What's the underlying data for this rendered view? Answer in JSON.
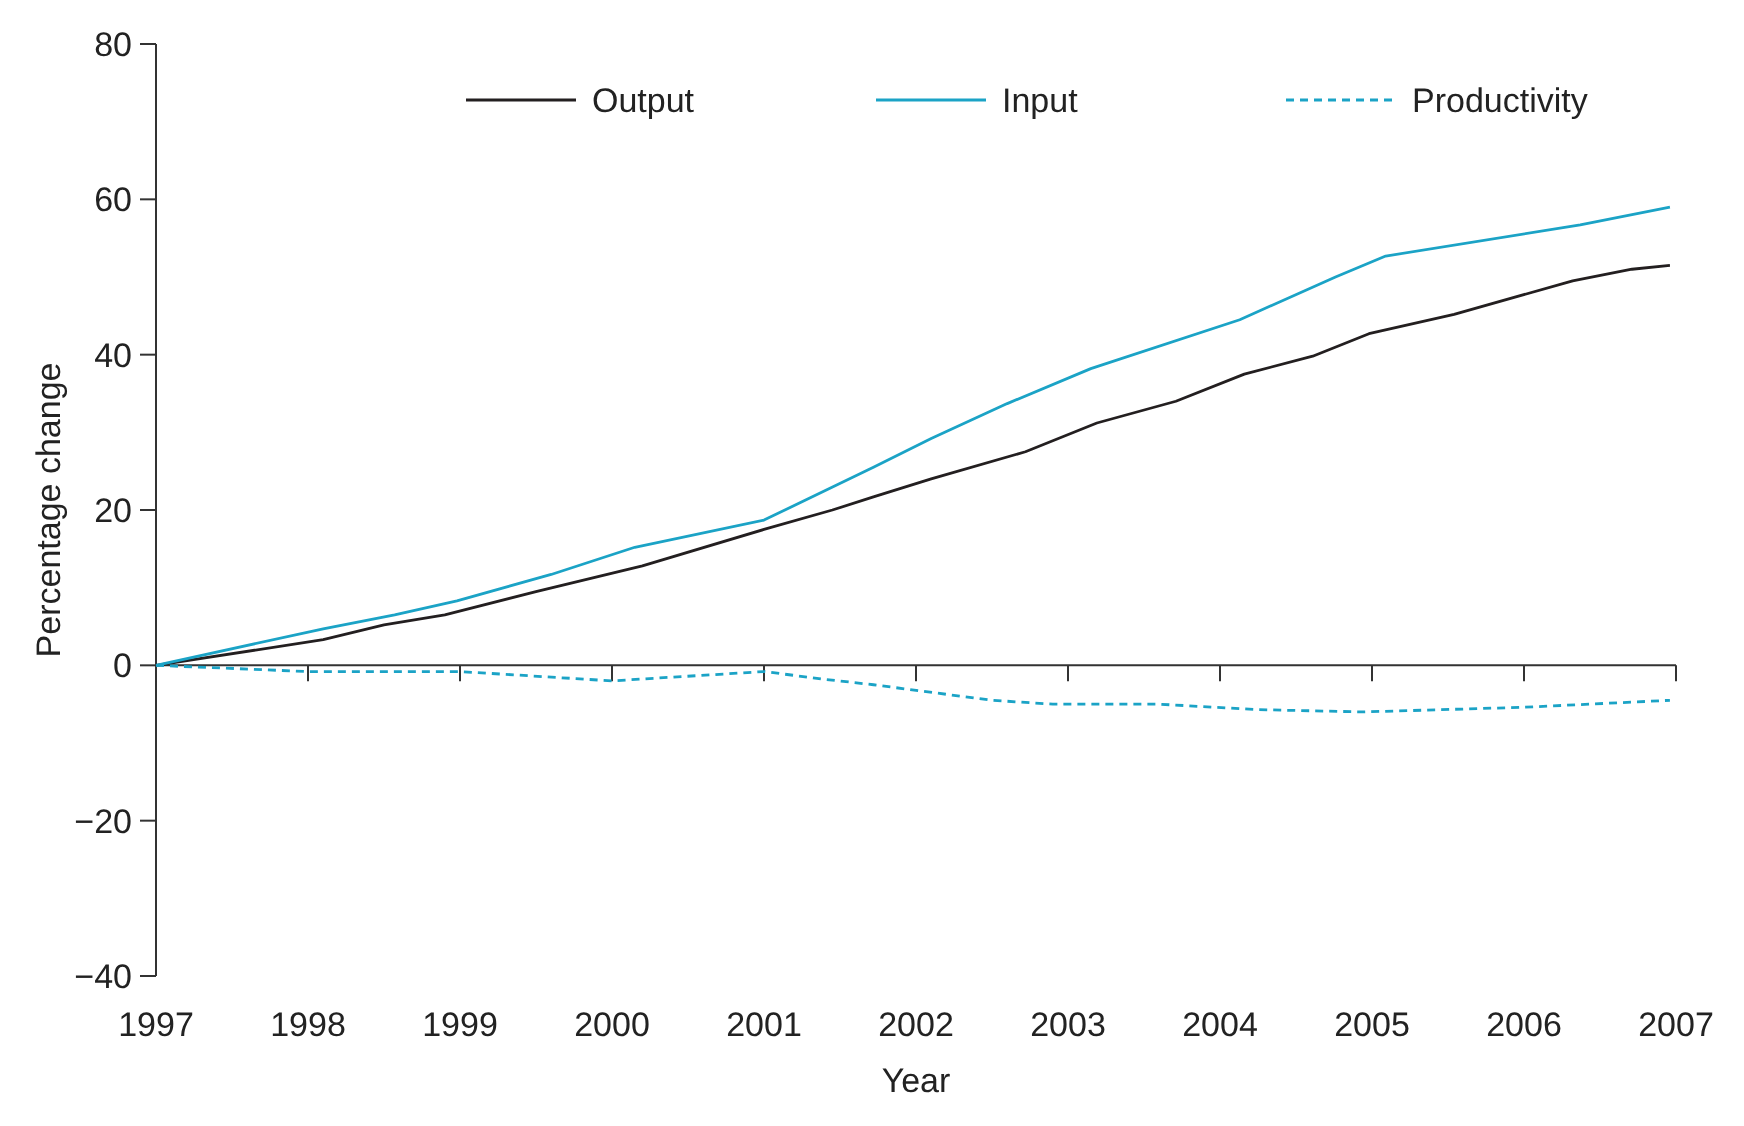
{
  "chart_data": {
    "type": "line",
    "xlabel": "Year",
    "ylabel": "Percentage change",
    "xlim": [
      1997,
      2007
    ],
    "xticks": [
      1997,
      1998,
      1999,
      2000,
      2001,
      2002,
      2003,
      2004,
      2005,
      2006,
      2007
    ],
    "ylim": [
      -40,
      80
    ],
    "yticks": [
      -40,
      -20,
      0,
      20,
      40,
      60,
      80
    ],
    "legend": "top",
    "series": [
      {
        "name": "Output",
        "color": "#231f20",
        "line_style": "solid",
        "x": [
          1997,
          1998.1,
          1998.5,
          1998.9,
          1999.5,
          2000.2,
          2001,
          2001.45,
          2001.72,
          2002.1,
          2002.72,
          2003.19,
          2003.71,
          2004.16,
          2004.61,
          2004.98,
          2005.54,
          2006.32,
          2006.71,
          2006.96
        ],
        "values": [
          0,
          3.3,
          5.2,
          6.5,
          9.5,
          12.8,
          17.5,
          20,
          21.7,
          24,
          27.5,
          31.2,
          34,
          37.5,
          39.8,
          42.7,
          45.2,
          49.5,
          51,
          51.5
        ]
      },
      {
        "name": "Input",
        "color": "#1ba3c6",
        "line_style": "solid",
        "x": [
          1997,
          1998.1,
          1998.57,
          1998.98,
          1999.6,
          2000.15,
          2001,
          2001.72,
          2002.1,
          2002.6,
          2003.15,
          2004.13,
          2004.76,
          2005.09,
          2006.37,
          2006.96
        ],
        "values": [
          0,
          4.7,
          6.5,
          8.3,
          11.7,
          15.2,
          18.7,
          25.5,
          29.2,
          33.7,
          38.2,
          44.5,
          50,
          52.7,
          56.7,
          59
        ]
      },
      {
        "name": "Productivity",
        "color": "#1ba3c6",
        "line_style": "dashed",
        "x": [
          1997,
          1998,
          1999,
          2000,
          2001,
          2001.4,
          2001.72,
          2002.5,
          2002.9,
          2003.6,
          2004.24,
          2004.94,
          2006,
          2006.96
        ],
        "values": [
          0,
          -0.8,
          -0.8,
          -2,
          -0.8,
          -1.8,
          -2.5,
          -4.5,
          -5,
          -5,
          -5.7,
          -6,
          -5.4,
          -4.5
        ]
      }
    ]
  }
}
